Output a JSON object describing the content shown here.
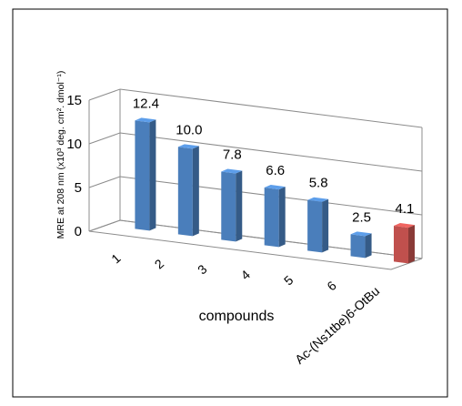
{
  "chart_data": {
    "type": "bar",
    "style": "3d-column",
    "title": "",
    "xlabel": "compounds",
    "ylabel": "MRE at 208 nm (x10³ deg. cm². dmol⁻¹)",
    "ylim": [
      0,
      15
    ],
    "yticks": [
      "0",
      "5",
      "10",
      "15"
    ],
    "categories": [
      "1",
      "2",
      "3",
      "4",
      "5",
      "6",
      "Ac-(Ns1tbe)6-OtBu"
    ],
    "values": [
      12.4,
      10.0,
      7.8,
      6.6,
      5.8,
      2.5,
      4.1
    ],
    "value_labels": [
      "12.4",
      "10.0",
      "7.8",
      "6.6",
      "5.8",
      "2.5",
      "4.1"
    ],
    "bar_colors": [
      "#4a7ebb",
      "#4a7ebb",
      "#4a7ebb",
      "#4a7ebb",
      "#4a7ebb",
      "#4a7ebb",
      "#c0504d"
    ],
    "grid": true,
    "legend": "none"
  }
}
